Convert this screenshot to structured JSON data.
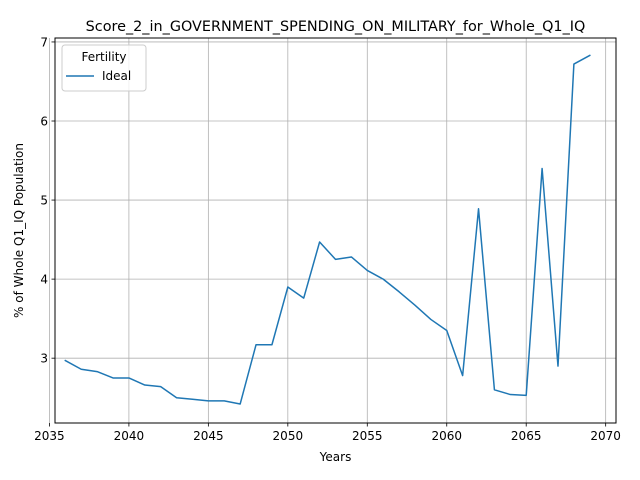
{
  "chart_data": {
    "type": "line",
    "title": "Score_2_in_GOVERNMENT_SPENDING_ON_MILITARY_for_Whole_Q1_IQ",
    "xlabel": "Years",
    "ylabel": "% of Whole Q1_IQ Population",
    "xlim": [
      2035.35,
      2070.65
    ],
    "ylim": [
      2.18,
      7.05
    ],
    "xticks": [
      2035,
      2040,
      2045,
      2050,
      2055,
      2060,
      2065,
      2070
    ],
    "yticks": [
      3,
      4,
      5,
      6,
      7
    ],
    "grid": true,
    "legend": {
      "title": "Fertility",
      "position": "top-left"
    },
    "series": [
      {
        "name": "Ideal",
        "color": "#1f77b4",
        "x": [
          2036,
          2037,
          2038,
          2039,
          2040,
          2041,
          2042,
          2043,
          2044,
          2045,
          2046,
          2047,
          2048,
          2049,
          2050,
          2051,
          2052,
          2053,
          2054,
          2055,
          2056,
          2057,
          2058,
          2059,
          2060,
          2061,
          2062,
          2063,
          2064,
          2065,
          2066,
          2067,
          2068,
          2069
        ],
        "y": [
          2.97,
          2.86,
          2.83,
          2.75,
          2.75,
          2.66,
          2.64,
          2.5,
          2.48,
          2.46,
          2.46,
          2.42,
          3.17,
          3.17,
          3.9,
          3.76,
          4.47,
          4.25,
          4.28,
          4.11,
          4.0,
          3.84,
          3.67,
          3.49,
          3.35,
          2.78,
          4.89,
          2.6,
          2.54,
          2.53,
          5.4,
          2.9,
          6.72,
          6.83
        ]
      }
    ]
  }
}
